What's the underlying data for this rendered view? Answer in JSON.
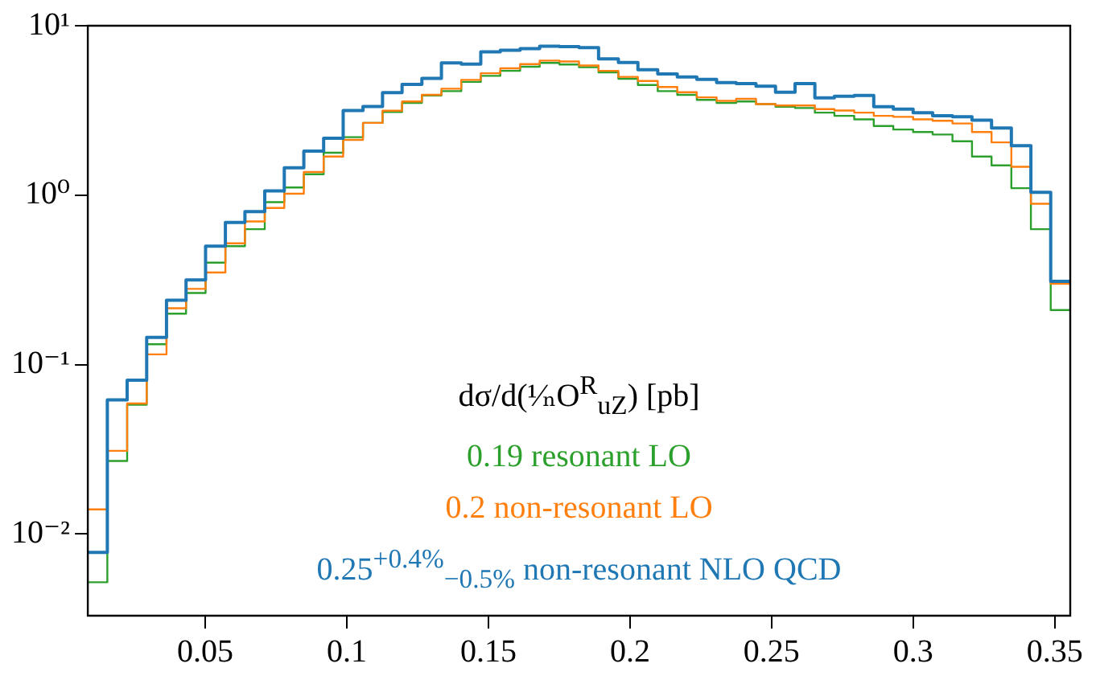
{
  "chart_data": {
    "type": "step",
    "legend_title": "dσ/d(¹⁄ₙO$^{R}$$_{uZ}$) [pb]",
    "legend": "bottom",
    "log": "y",
    "x": [
      0.0085,
      0.0154,
      0.0224,
      0.0293,
      0.0363,
      0.0432,
      0.0501,
      0.0571,
      0.064,
      0.071,
      0.0779,
      0.0848,
      0.0918,
      0.0987,
      0.1057,
      0.1126,
      0.1195,
      0.1265,
      0.1334,
      0.1404,
      0.1473,
      0.1542,
      0.1612,
      0.1681,
      0.1751,
      0.182,
      0.1889,
      0.1959,
      0.2028,
      0.2098,
      0.2167,
      0.2236,
      0.2306,
      0.2375,
      0.2445,
      0.2514,
      0.2583,
      0.2653,
      0.2722,
      0.2792,
      0.2861,
      0.293,
      0.3,
      0.3069,
      0.3139,
      0.3208,
      0.3277,
      0.3347,
      0.3416,
      0.3486,
      0.3555
    ],
    "series": [
      {
        "name": "0.19 resonant LO",
        "color": "#2ca02c",
        "values": [
          0.0052,
          0.027,
          0.058,
          0.132,
          0.2,
          0.265,
          0.4,
          0.5,
          0.63,
          0.91,
          1.11,
          1.33,
          1.78,
          2.2,
          2.67,
          3.1,
          3.5,
          3.88,
          4.11,
          4.66,
          5.06,
          5.42,
          5.73,
          6.03,
          5.9,
          5.69,
          5.31,
          4.86,
          4.47,
          4.11,
          3.91,
          3.65,
          3.5,
          3.57,
          3.45,
          3.33,
          3.27,
          3.07,
          2.94,
          2.8,
          2.56,
          2.44,
          2.36,
          2.28,
          2.08,
          1.69,
          1.5,
          1.1,
          0.63,
          0.21,
          0.21
        ]
      },
      {
        "name": "0.2 non-resonant LO",
        "color": "#ff7f0e",
        "values": [
          0.014,
          0.031,
          0.059,
          0.115,
          0.215,
          0.28,
          0.35,
          0.52,
          0.7,
          0.84,
          1.02,
          1.37,
          1.69,
          2.12,
          2.67,
          3.15,
          3.57,
          3.91,
          4.25,
          4.79,
          5.24,
          5.61,
          5.94,
          6.23,
          6.15,
          5.82,
          5.42,
          4.99,
          4.72,
          4.35,
          4.05,
          3.78,
          3.6,
          3.7,
          3.45,
          3.38,
          3.38,
          3.22,
          3.16,
          3.07,
          2.94,
          2.9,
          2.8,
          2.75,
          2.65,
          2.36,
          2.05,
          1.47,
          0.89,
          0.3,
          0.3
        ]
      },
      {
        "name": "0.25$^{+0.4%}$$_{−0.5%}$ non-resonant NLO QCD",
        "color": "#1f77b4",
        "values": [
          0.0078,
          0.062,
          0.081,
          0.145,
          0.24,
          0.316,
          0.5,
          0.69,
          0.8,
          1.06,
          1.45,
          1.82,
          2.17,
          3.16,
          3.34,
          4.03,
          4.5,
          4.89,
          6.03,
          5.94,
          7.02,
          7.17,
          7.32,
          7.57,
          7.52,
          7.42,
          6.37,
          6.07,
          5.5,
          5.2,
          4.99,
          4.82,
          4.62,
          4.56,
          4.4,
          4.05,
          4.56,
          3.75,
          3.83,
          3.88,
          3.33,
          3.22,
          3.07,
          2.94,
          2.9,
          2.77,
          2.49,
          1.96,
          1.04,
          0.31,
          0.31
        ]
      }
    ],
    "xlim": [
      0.0085,
      0.3555
    ],
    "xticks": [
      0.05,
      0.1,
      0.15,
      0.2,
      0.25,
      0.3,
      0.35
    ],
    "ylim": [
      0.0033,
      10
    ],
    "yticks": [
      {
        "value": 0.01,
        "label": "10⁻²"
      },
      {
        "value": 0.1,
        "label": "10⁻¹"
      },
      {
        "value": 1,
        "label": "10⁰"
      },
      {
        "value": 10,
        "label": "10¹"
      }
    ]
  }
}
